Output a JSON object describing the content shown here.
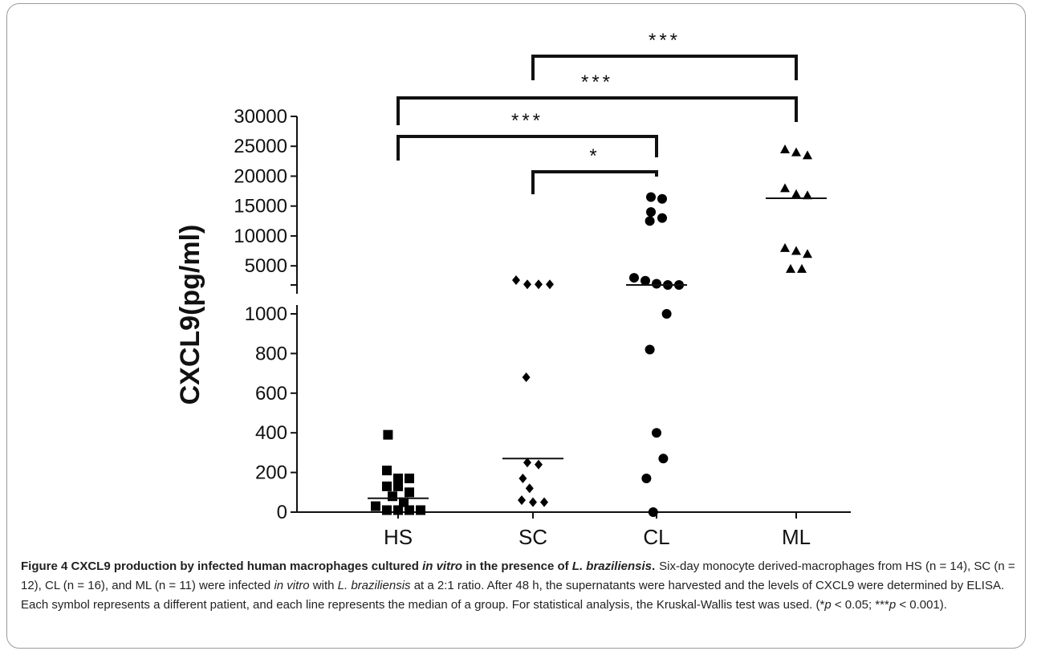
{
  "chart_data": {
    "type": "scatter",
    "ylabel": "CXCL9(pg/ml)",
    "categories": [
      "HS",
      "SC",
      "CL",
      "ML"
    ],
    "y_axis": {
      "broken": true,
      "lower_ticks": [
        0,
        200,
        400,
        600,
        800,
        1000
      ],
      "upper_ticks": [
        5000,
        10000,
        15000,
        20000,
        25000,
        30000
      ]
    },
    "groups": [
      {
        "name": "HS",
        "marker": "square",
        "median": 70,
        "values": [
          390,
          210,
          170,
          170,
          130,
          130,
          100,
          80,
          50,
          30,
          10,
          10,
          10,
          10
        ]
      },
      {
        "name": "SC",
        "marker": "diamond",
        "median": 270,
        "values": [
          2600,
          1900,
          1900,
          1900,
          680,
          250,
          240,
          170,
          120,
          60,
          50,
          50
        ]
      },
      {
        "name": "CL",
        "marker": "circle",
        "median": 1500,
        "values": [
          16500,
          16200,
          14000,
          13000,
          12500,
          3000,
          2500,
          2000,
          1800,
          1800,
          1000,
          820,
          400,
          270,
          170,
          0
        ]
      },
      {
        "name": "ML",
        "marker": "triangle",
        "median": 16300,
        "values": [
          24500,
          24000,
          23500,
          18000,
          17000,
          16800,
          8000,
          7500,
          7000,
          4500,
          4500
        ]
      }
    ],
    "significance": [
      {
        "from": "SC",
        "to": "ML",
        "label": "***"
      },
      {
        "from": "HS",
        "to": "ML",
        "label": "***"
      },
      {
        "from": "HS",
        "to": "CL",
        "label": "***"
      },
      {
        "from": "SC",
        "to": "CL",
        "label": "*"
      }
    ]
  },
  "caption": {
    "title_parts": [
      {
        "text": "Figure 4 CXCL9 production by infected human macrophages cultured ",
        "italic": false
      },
      {
        "text": "in vitro",
        "italic": true
      },
      {
        "text": " in the presence of ",
        "italic": false
      },
      {
        "text": "L. braziliensis",
        "italic": true
      },
      {
        "text": ".",
        "italic": false
      }
    ],
    "body_parts": [
      {
        "text": "Six-day monocyte derived-macrophages from HS (n = 14), SC (n = 12), CL (n = 16), and ML (n = 11) were infected ",
        "italic": false
      },
      {
        "text": "in vitro",
        "italic": true
      },
      {
        "text": " with ",
        "italic": false
      },
      {
        "text": "L. braziliensis",
        "italic": true
      },
      {
        "text": " at a 2:1 ratio. After 48 h, the supernatants were harvested and the levels of CXCL9 were determined by ELISA. Each symbol represents a different patient, and each line represents the median of a group. For statistical analysis, the Kruskal-Wallis test was used. (*",
        "italic": false
      },
      {
        "text": "p",
        "italic": true
      },
      {
        "text": " < 0.05; ***",
        "italic": false
      },
      {
        "text": "p",
        "italic": true
      },
      {
        "text": " < 0.001).",
        "italic": false
      }
    ]
  }
}
